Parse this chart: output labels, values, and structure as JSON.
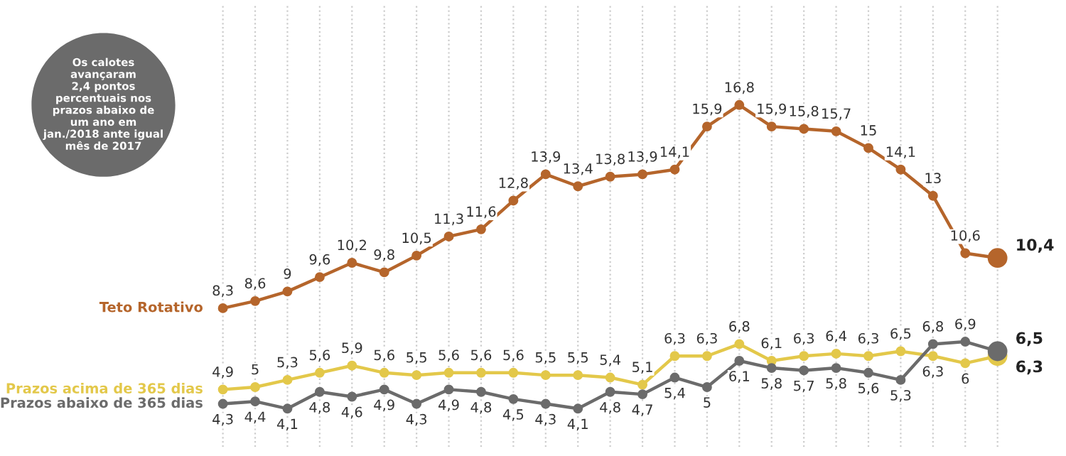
{
  "chart_data": {
    "type": "line",
    "categories": [
      null,
      null,
      null,
      null,
      null,
      null,
      null,
      null,
      null,
      null,
      null,
      null,
      null,
      null,
      null,
      null,
      null,
      null,
      null,
      null,
      null,
      null,
      null,
      null,
      null
    ],
    "series": [
      {
        "name": "Teto Rotativo",
        "color": "#b5652b",
        "values": [
          8.3,
          8.6,
          9,
          9.6,
          10.2,
          9.8,
          10.5,
          11.3,
          11.6,
          12.8,
          13.9,
          13.4,
          13.8,
          13.9,
          14.1,
          15.9,
          16.8,
          15.9,
          15.8,
          15.7,
          15,
          14.1,
          13,
          10.6,
          10.4
        ],
        "value_labels": [
          "8,3",
          "8,6",
          "9",
          "9,6",
          "10,2",
          "9,8",
          "10,5",
          "11,3",
          "11,6",
          "12,8",
          "13,9",
          "13,4",
          "13,8",
          "13,9",
          "14,1",
          "15,9",
          "16,8",
          "15,9",
          "15,8",
          "15,7",
          "15",
          "14,1",
          "13",
          "10,6",
          "10,4"
        ]
      },
      {
        "name": "Prazos acima de 365 dias",
        "color": "#e3c84a",
        "values": [
          4.9,
          5,
          5.3,
          5.6,
          5.9,
          5.6,
          5.5,
          5.6,
          5.6,
          5.6,
          5.5,
          5.5,
          5.4,
          5.1,
          6.3,
          6.3,
          6.8,
          6.1,
          6.3,
          6.4,
          6.3,
          6.5,
          6.3,
          6,
          6.3
        ],
        "value_labels": [
          "4,9",
          "5",
          "5,3",
          "5,6",
          "5,9",
          "5,6",
          "5,5",
          "5,6",
          "5,6",
          "5,6",
          "5,5",
          "5,5",
          "5,4",
          "5,1",
          "6,3",
          "6,3",
          "6,8",
          "6,1",
          "6,3",
          "6,4",
          "6,3",
          "6,5",
          "6,3",
          "6",
          "6,3"
        ]
      },
      {
        "name": "Prazos abaixo de 365 dias",
        "color": "#6b6b6b",
        "values": [
          4.3,
          4.4,
          4.1,
          4.8,
          4.6,
          4.9,
          4.3,
          4.9,
          4.8,
          4.5,
          4.3,
          4.1,
          4.8,
          4.7,
          5.4,
          5,
          6.1,
          5.8,
          5.7,
          5.8,
          5.6,
          5.3,
          6.8,
          6.9,
          6.5
        ],
        "value_labels": [
          "4,3",
          "4,4",
          "4,1",
          "4,8",
          "4,6",
          "4,9",
          "4,3",
          "4,9",
          "4,8",
          "4,5",
          "4,3",
          "4,1",
          "4,8",
          "4,7",
          "5,4",
          "5",
          "6,1",
          "5,8",
          "5,7",
          "5,8",
          "5,6",
          "5,3",
          "6,8",
          "6,9",
          "6,5"
        ]
      }
    ],
    "ylim": [
      2.5,
      21
    ],
    "grid": "x",
    "marker": "circle",
    "line_style": "solid",
    "legend": "left",
    "annotations": [
      "Os calotes\navançaram\n2,4 pontos\npercentuais nos\nprazos abaixo de\num ano em\njan./2018 ante igual\nmês de 2017"
    ]
  }
}
